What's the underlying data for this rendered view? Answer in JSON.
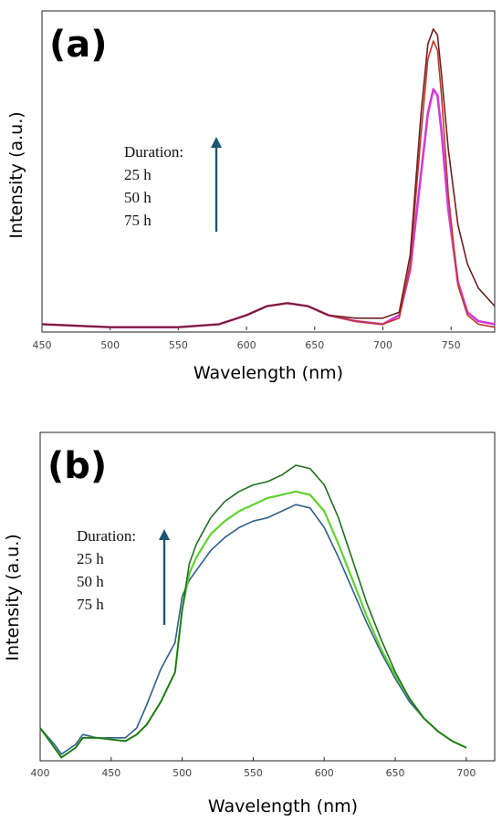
{
  "chart_data": [
    {
      "type": "line",
      "panel_label": "(a)",
      "xlabel": "Wavelength (nm)",
      "ylabel": "Intensity (a.u.)",
      "xlim": [
        450,
        782
      ],
      "ylim": [
        0,
        1.06
      ],
      "xticks": [
        450,
        500,
        550,
        600,
        650,
        700,
        750
      ],
      "legend": {
        "title": "Duration:",
        "entries": [
          "25 h",
          "50 h",
          "75 h"
        ],
        "placement": "center-left, with upward arrow"
      },
      "series": [
        {
          "color": "#d43bd8",
          "x": [
            450,
            500,
            550,
            580,
            600,
            615,
            630,
            645,
            660,
            680,
            700,
            712,
            720,
            728,
            733,
            737,
            740,
            743,
            748,
            755,
            762,
            770,
            782
          ],
          "y": [
            0.02,
            0.01,
            0.01,
            0.02,
            0.05,
            0.08,
            0.09,
            0.08,
            0.05,
            0.03,
            0.02,
            0.05,
            0.2,
            0.52,
            0.72,
            0.8,
            0.78,
            0.66,
            0.4,
            0.16,
            0.06,
            0.03,
            0.02
          ]
        },
        {
          "color": "#c0392b",
          "x": [
            450,
            500,
            550,
            580,
            600,
            615,
            630,
            645,
            660,
            680,
            700,
            712,
            720,
            728,
            733,
            737,
            740,
            743,
            748,
            755,
            762,
            770,
            782
          ],
          "y": [
            0.02,
            0.01,
            0.01,
            0.02,
            0.05,
            0.08,
            0.09,
            0.08,
            0.05,
            0.03,
            0.02,
            0.04,
            0.22,
            0.65,
            0.9,
            0.96,
            0.93,
            0.78,
            0.45,
            0.15,
            0.05,
            0.02,
            0.01
          ]
        },
        {
          "color": "#6b2121",
          "x": [
            450,
            500,
            550,
            580,
            600,
            615,
            630,
            645,
            660,
            680,
            700,
            712,
            720,
            728,
            733,
            737,
            740,
            743,
            748,
            755,
            762,
            770,
            782
          ],
          "y": [
            0.02,
            0.01,
            0.01,
            0.02,
            0.05,
            0.08,
            0.09,
            0.08,
            0.05,
            0.04,
            0.04,
            0.06,
            0.25,
            0.72,
            0.95,
            1.0,
            0.98,
            0.85,
            0.6,
            0.35,
            0.22,
            0.14,
            0.08
          ]
        }
      ]
    },
    {
      "type": "line",
      "panel_label": "(b)",
      "xlabel": "Wavelength (nm)",
      "ylabel": "Intensity (a.u.)",
      "xlim": [
        400,
        720
      ],
      "ylim": [
        0,
        1.0
      ],
      "xticks": [
        400,
        450,
        500,
        550,
        600,
        650,
        700
      ],
      "legend": {
        "title": "Duration:",
        "entries": [
          "25 h",
          "50 h",
          "75 h"
        ],
        "placement": "center-left, with upward arrow"
      },
      "series": [
        {
          "color": "#2e5f8a",
          "x": [
            400,
            410,
            415,
            425,
            430,
            440,
            460,
            468,
            475,
            485,
            495,
            500,
            505,
            510,
            520,
            530,
            540,
            550,
            560,
            570,
            580,
            590,
            600,
            610,
            620,
            630,
            640,
            650,
            660,
            670,
            680,
            690,
            700
          ],
          "y": [
            0.1,
            0.05,
            0.02,
            0.05,
            0.08,
            0.07,
            0.07,
            0.1,
            0.17,
            0.28,
            0.36,
            0.5,
            0.55,
            0.58,
            0.64,
            0.68,
            0.71,
            0.73,
            0.74,
            0.76,
            0.78,
            0.77,
            0.71,
            0.62,
            0.52,
            0.42,
            0.33,
            0.25,
            0.18,
            0.13,
            0.09,
            0.06,
            0.04
          ]
        },
        {
          "color": "#5fd12f",
          "x": [
            400,
            410,
            415,
            425,
            430,
            440,
            460,
            468,
            475,
            485,
            495,
            500,
            505,
            510,
            520,
            530,
            540,
            550,
            560,
            570,
            580,
            590,
            600,
            610,
            620,
            630,
            640,
            650,
            660,
            670,
            680,
            690,
            700
          ],
          "y": [
            0.1,
            0.04,
            0.01,
            0.04,
            0.07,
            0.07,
            0.06,
            0.08,
            0.11,
            0.18,
            0.27,
            0.46,
            0.57,
            0.62,
            0.69,
            0.73,
            0.76,
            0.78,
            0.8,
            0.81,
            0.82,
            0.81,
            0.76,
            0.66,
            0.55,
            0.44,
            0.34,
            0.26,
            0.19,
            0.13,
            0.09,
            0.06,
            0.04
          ]
        },
        {
          "color": "#1f6e1f",
          "x": [
            400,
            410,
            415,
            425,
            430,
            440,
            460,
            468,
            475,
            485,
            495,
            500,
            505,
            510,
            520,
            530,
            540,
            550,
            560,
            570,
            580,
            590,
            600,
            610,
            620,
            630,
            640,
            650,
            660,
            670,
            680,
            690,
            700
          ],
          "y": [
            0.1,
            0.04,
            0.01,
            0.04,
            0.07,
            0.07,
            0.06,
            0.08,
            0.11,
            0.18,
            0.27,
            0.46,
            0.6,
            0.66,
            0.74,
            0.79,
            0.82,
            0.84,
            0.85,
            0.87,
            0.9,
            0.89,
            0.84,
            0.74,
            0.61,
            0.48,
            0.37,
            0.27,
            0.19,
            0.13,
            0.09,
            0.06,
            0.04
          ]
        }
      ]
    }
  ],
  "colors": {
    "arrow": "#1f5573",
    "frame": "#222222",
    "text": "#000000"
  }
}
